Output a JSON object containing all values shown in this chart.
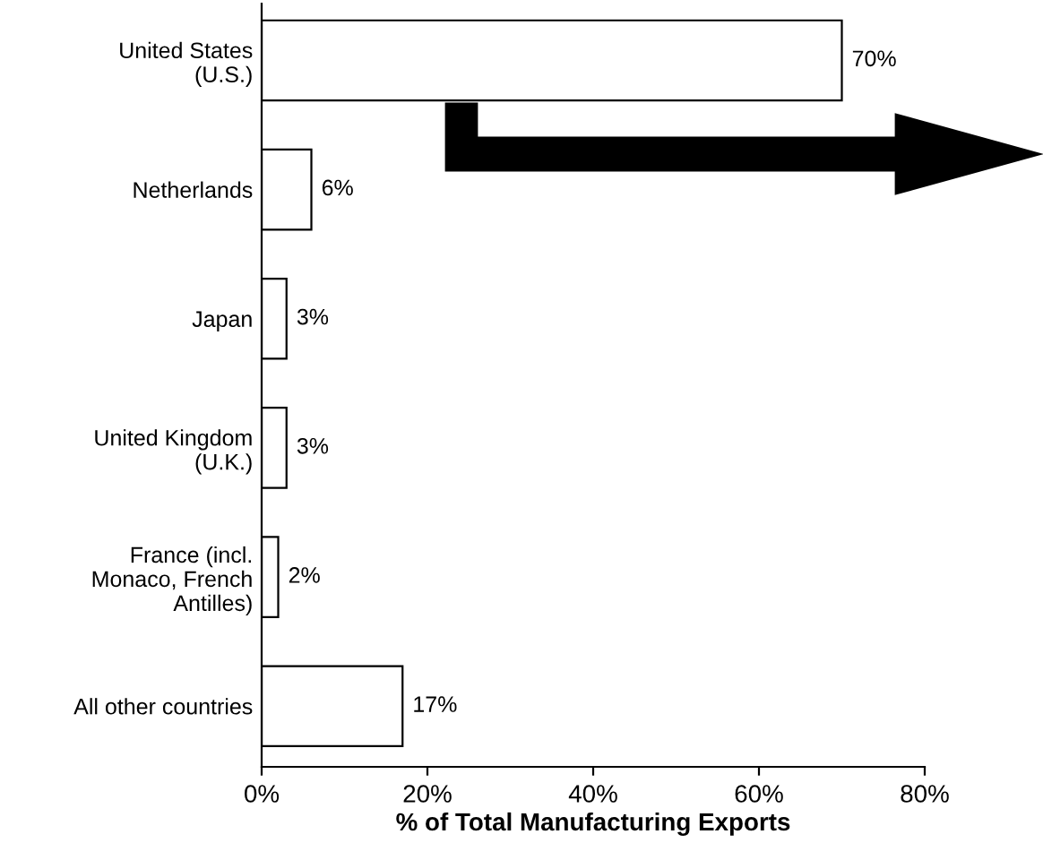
{
  "chart_data": {
    "type": "bar",
    "orientation": "horizontal",
    "xlabel": "% of Total Manufacturing Exports",
    "categories": [
      "United States\n(U.S.)",
      "Netherlands",
      "Japan",
      "United Kingdom\n(U.K.)",
      "France (incl.\nMonaco, French\nAntilles)",
      "All other countries"
    ],
    "values": [
      70,
      6,
      3,
      3,
      2,
      17
    ],
    "value_labels": [
      "70%",
      "6%",
      "3%",
      "3%",
      "2%",
      "17%"
    ],
    "color": "#ffffff",
    "xlim": [
      0,
      80
    ],
    "xticks": [
      {
        "value": 0,
        "label": "0%"
      },
      {
        "value": 20,
        "label": "20%"
      },
      {
        "value": 40,
        "label": "40%"
      },
      {
        "value": 60,
        "label": "60%"
      },
      {
        "value": 80,
        "label": "80%"
      }
    ],
    "grid": false,
    "legend": false
  }
}
